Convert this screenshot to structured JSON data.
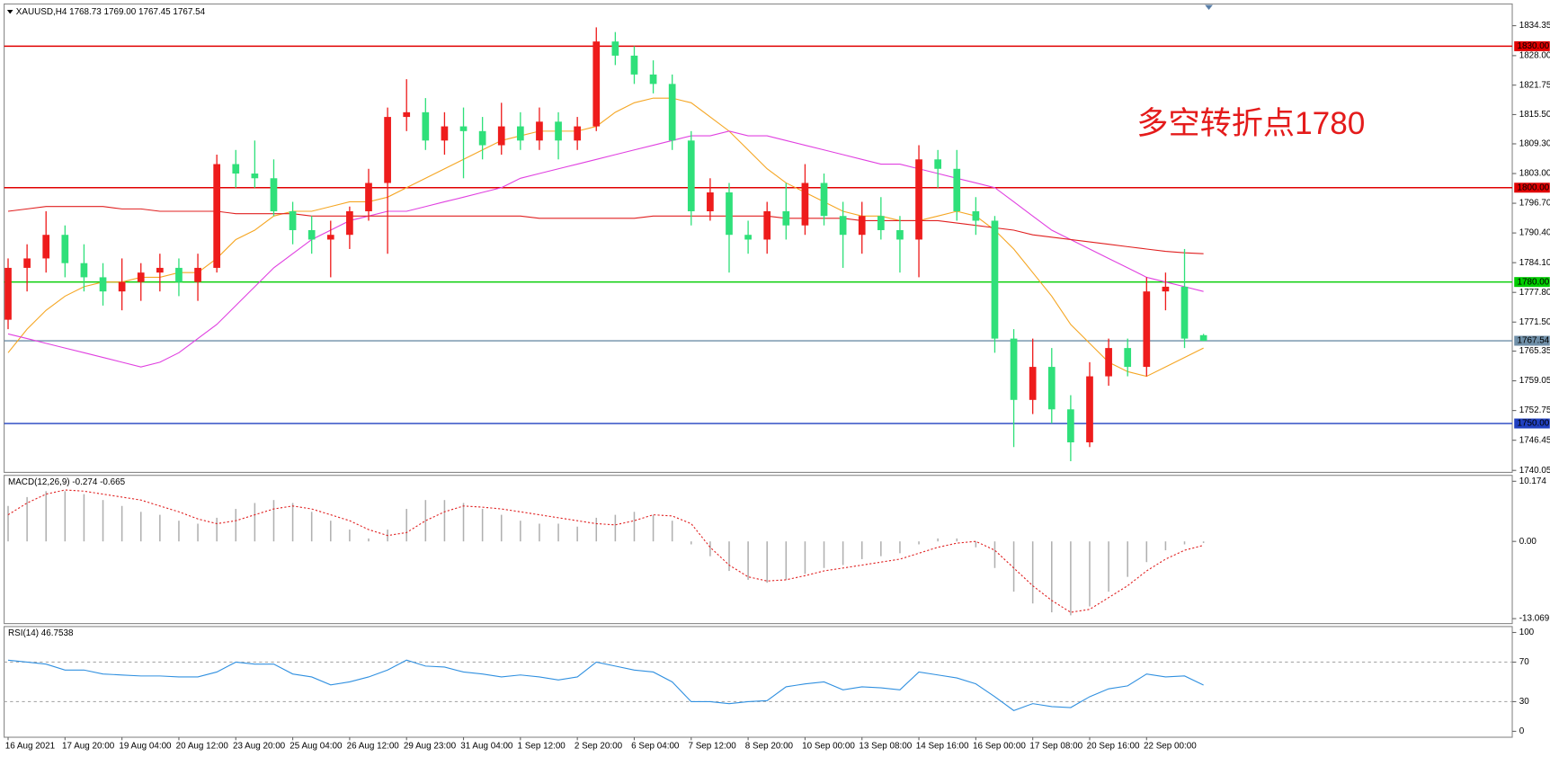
{
  "chart_data": [
    {
      "type": "candlestick",
      "title": "XAUUSD,H4",
      "ohlc_labels": [
        "1768.73",
        "1769.00",
        "1767.45",
        "1767.54"
      ],
      "categories": [
        "16 Aug 2021",
        null,
        null,
        "17 Aug 20:00",
        null,
        null,
        "19 Aug 04:00",
        null,
        null,
        "20 Aug 12:00",
        null,
        null,
        "23 Aug 20:00",
        null,
        null,
        "25 Aug 04:00",
        null,
        null,
        "26 Aug 12:00",
        null,
        null,
        "29 Aug 23:00",
        null,
        null,
        "31 Aug 04:00",
        null,
        null,
        "1 Sep 12:00",
        null,
        null,
        "2 Sep 20:00",
        null,
        null,
        "6 Sep 04:00",
        null,
        null,
        "7 Sep 12:00",
        null,
        null,
        "8 Sep 20:00",
        null,
        null,
        "10 Sep 00:00",
        null,
        null,
        "13 Sep 08:00",
        null,
        null,
        "14 Sep 16:00",
        null,
        null,
        "16 Sep 00:00",
        null,
        null,
        "17 Sep 08:00",
        null,
        null,
        "20 Sep 16:00",
        null,
        null,
        "22 Sep 00:00",
        null,
        null,
        null
      ],
      "open": [
        1772,
        1783,
        1785,
        1790,
        1784,
        1781,
        1778,
        1780,
        1782,
        1783,
        1780,
        1783,
        1805,
        1803,
        1802,
        1795,
        1791,
        1789,
        1790,
        1795,
        1801,
        1815,
        1816,
        1810,
        1813,
        1812,
        1809,
        1813,
        1810,
        1814,
        1810,
        1813,
        1831,
        1828,
        1824,
        1822,
        1810,
        1795,
        1799,
        1790,
        1789,
        1795,
        1792,
        1801,
        1794,
        1790,
        1794,
        1791,
        1789,
        1806,
        1804,
        1795,
        1793,
        1768,
        1755,
        1762,
        1753,
        1746,
        1760,
        1766,
        1762,
        1778,
        1779,
        1768.73
      ],
      "high": [
        1785,
        1788,
        1795,
        1792,
        1788,
        1784,
        1785,
        1784,
        1786,
        1785,
        1786,
        1807,
        1808,
        1810,
        1806,
        1797,
        1794,
        1793,
        1796,
        1804,
        1817,
        1823,
        1819,
        1816,
        1817,
        1815,
        1818,
        1816,
        1817,
        1816,
        1815,
        1834,
        1833,
        1830,
        1827,
        1824,
        1812,
        1802,
        1801,
        1793,
        1797,
        1801,
        1805,
        1803,
        1797,
        1797,
        1798,
        1794,
        1809,
        1808,
        1808,
        1798,
        1794,
        1770,
        1768,
        1766,
        1756,
        1763,
        1768,
        1768,
        1781,
        1782,
        1787,
        1769
      ],
      "low": [
        1770,
        1778,
        1782,
        1781,
        1778,
        1775,
        1774,
        1776,
        1778,
        1777,
        1776,
        1782,
        1800,
        1800,
        1794,
        1788,
        1786,
        1781,
        1787,
        1793,
        1786,
        1812,
        1808,
        1807,
        1802,
        1806,
        1807,
        1808,
        1808,
        1806,
        1808,
        1812,
        1826,
        1822,
        1820,
        1808,
        1792,
        1793,
        1782,
        1786,
        1786,
        1789,
        1790,
        1792,
        1783,
        1786,
        1789,
        1782,
        1781,
        1800,
        1793,
        1790,
        1765,
        1745,
        1752,
        1750,
        1742,
        1745,
        1758,
        1760,
        1760,
        1774,
        1766,
        1767.45
      ],
      "close": [
        1783,
        1785,
        1790,
        1784,
        1781,
        1778,
        1780,
        1782,
        1783,
        1780,
        1783,
        1805,
        1803,
        1802,
        1795,
        1791,
        1789,
        1790,
        1795,
        1801,
        1815,
        1816,
        1810,
        1813,
        1812,
        1809,
        1813,
        1810,
        1814,
        1810,
        1813,
        1831,
        1828,
        1824,
        1822,
        1810,
        1795,
        1799,
        1790,
        1789,
        1795,
        1792,
        1801,
        1794,
        1790,
        1794,
        1791,
        1789,
        1806,
        1804,
        1795,
        1793,
        1768,
        1755,
        1762,
        1753,
        1746,
        1760,
        1766,
        1762,
        1778,
        1779,
        1768,
        1767.54
      ],
      "up_color": "#ee1c1c",
      "down_color": "#2fe07a",
      "series": [
        {
          "color": "#f5a623",
          "values": [
            1765,
            1770,
            1774,
            1777,
            1779,
            1780,
            1780,
            1781,
            1781,
            1782,
            1782,
            1785,
            1789,
            1791,
            1794,
            1795,
            1795,
            1796,
            1797,
            1797,
            1798,
            1800,
            1802,
            1804,
            1806,
            1808,
            1810,
            1811,
            1812,
            1812,
            1812,
            1813,
            1816,
            1818,
            1819,
            1819,
            1818,
            1815,
            1812,
            1808,
            1804,
            1801,
            1799,
            1797,
            1795,
            1794,
            1794,
            1793,
            1793,
            1794,
            1795,
            1794,
            1791,
            1787,
            1782,
            1777,
            1771,
            1767,
            1763,
            1761,
            1760,
            1762,
            1764,
            1766
          ]
        },
        {
          "color": "#e040e0",
          "values": [
            1769,
            1768,
            1767,
            1766,
            1765,
            1764,
            1763,
            1762,
            1763,
            1765,
            1768,
            1771,
            1775,
            1779,
            1783,
            1786,
            1789,
            1791,
            1793,
            1794,
            1795,
            1795,
            1796,
            1797,
            1798,
            1799,
            1800,
            1802,
            1803,
            1804,
            1805,
            1806,
            1807,
            1808,
            1809,
            1810,
            1811,
            1811,
            1812,
            1811,
            1811,
            1810,
            1809,
            1808,
            1807,
            1806,
            1805,
            1805,
            1804,
            1803,
            1802,
            1801,
            1800,
            1797,
            1794,
            1791,
            1789,
            1787,
            1785,
            1783,
            1781,
            1780,
            1779,
            1778
          ]
        },
        {
          "color": "#e02020",
          "values": [
            1795,
            1795.5,
            1796,
            1796,
            1796,
            1796,
            1795.5,
            1795.5,
            1795,
            1795,
            1795,
            1795,
            1794.5,
            1794.5,
            1794.5,
            1794.5,
            1794,
            1794,
            1794,
            1794,
            1794,
            1794,
            1794,
            1794,
            1794,
            1794,
            1794,
            1794,
            1793.5,
            1793.5,
            1793.5,
            1793.5,
            1793.5,
            1793.5,
            1794,
            1794,
            1794,
            1794,
            1794,
            1794,
            1794,
            1793.5,
            1793.5,
            1793.5,
            1793.5,
            1793,
            1793,
            1793,
            1793,
            1793,
            1792.5,
            1792,
            1791.5,
            1791,
            1790,
            1789.5,
            1789,
            1788.5,
            1788,
            1787.5,
            1787,
            1786.5,
            1786.2,
            1786
          ]
        }
      ],
      "levels": [
        {
          "value": 1830,
          "label": "1830.00",
          "color": "#e00000"
        },
        {
          "value": 1800,
          "label": "1800.00",
          "color": "#e00000"
        },
        {
          "value": 1780,
          "label": "1780.00",
          "color": "#00cc00"
        },
        {
          "value": 1767.54,
          "label": "1767.54",
          "color": "#6f8fa8"
        },
        {
          "value": 1750,
          "label": "1750.00",
          "color": "#2040c0"
        }
      ],
      "annotation": "多空转折点1780",
      "ylim": [
        1740.05,
        1834.35
      ],
      "yticks": [
        {
          "value": 1834.35,
          "label": "1834.35"
        },
        {
          "value": 1828,
          "label": "1828.00"
        },
        {
          "value": 1821.75,
          "label": "1821.75"
        },
        {
          "value": 1815.5,
          "label": "1815.50"
        },
        {
          "value": 1809.3,
          "label": "1809.30"
        },
        {
          "value": 1803,
          "label": "1803.00"
        },
        {
          "value": 1796.7,
          "label": "1796.70"
        },
        {
          "value": 1790.4,
          "label": "1790.40"
        },
        {
          "value": 1784.1,
          "label": "1784.10"
        },
        {
          "value": 1777.8,
          "label": "1777.80"
        },
        {
          "value": 1771.5,
          "label": "1771.50"
        },
        {
          "value": 1765.35,
          "label": "1765.35"
        },
        {
          "value": 1759.05,
          "label": "1759.05"
        },
        {
          "value": 1752.75,
          "label": "1752.75"
        },
        {
          "value": 1746.45,
          "label": "1746.45"
        },
        {
          "value": 1740.05,
          "label": "1740.05"
        }
      ]
    },
    {
      "type": "macd",
      "title": "MACD(12,26,9) -0.274 -0.665",
      "series": [
        {
          "color": "#b0b0b0",
          "values": [
            6,
            7.5,
            8.5,
            8.5,
            8,
            7,
            6,
            5,
            4.5,
            3.5,
            3,
            4,
            5.5,
            6.5,
            7,
            6.5,
            5,
            3.5,
            2,
            0.5,
            2,
            5.5,
            7,
            7,
            6.5,
            5.5,
            4.5,
            3.5,
            3,
            3,
            2.5,
            4,
            4.5,
            5,
            4.5,
            3.5,
            -0.5,
            -2.5,
            -5,
            -6.5,
            -7,
            -6.5,
            -5.5,
            -4.5,
            -4,
            -3,
            -2.5,
            -2,
            -0.5,
            0.5,
            0.5,
            -1,
            -4.5,
            -8.5,
            -10.5,
            -12,
            -12.5,
            -11,
            -8.5,
            -6,
            -3.5,
            -1.5,
            -0.5,
            -0.274
          ]
        },
        {
          "color": "#e02020",
          "values": [
            4.5,
            6.5,
            8,
            8.7,
            8.5,
            8,
            7.5,
            7,
            6,
            5,
            3.8,
            3,
            3.5,
            4.5,
            5.5,
            6,
            5.5,
            4.5,
            3.5,
            2,
            1,
            1.5,
            3.5,
            5,
            6,
            5.8,
            5.5,
            5,
            4.5,
            4,
            3.5,
            3,
            2.8,
            3.5,
            4.5,
            4.3,
            3,
            -1,
            -4,
            -6,
            -6.7,
            -6.5,
            -5.8,
            -5,
            -4.5,
            -4,
            -3.5,
            -3,
            -2,
            -1,
            -0.3,
            0,
            -1.5,
            -4.5,
            -7.5,
            -10,
            -12,
            -11.5,
            -9.5,
            -7.5,
            -5,
            -3,
            -1.5,
            -0.665
          ]
        }
      ],
      "ylim": [
        -13.069,
        10.174
      ],
      "yticks": [
        10.174,
        {
          "value": 0,
          "label": "0.00"
        },
        -13.069
      ]
    },
    {
      "type": "line",
      "title": "RSI(14) 46.7538",
      "color": "#3090e0",
      "values": [
        72,
        70,
        68,
        62,
        62,
        58,
        57,
        56,
        56,
        55,
        55,
        60,
        70,
        68,
        68,
        58,
        55,
        47,
        50,
        55,
        62,
        72,
        66,
        65,
        60,
        58,
        55,
        57,
        55,
        52,
        55,
        70,
        66,
        62,
        60,
        50,
        30,
        30,
        28,
        30,
        31,
        45,
        48,
        50,
        42,
        45,
        44,
        42,
        60,
        57,
        54,
        48,
        35,
        21,
        28,
        25,
        24,
        35,
        43,
        46,
        58,
        55,
        56,
        46.7538
      ],
      "ylim": [
        0,
        100
      ],
      "yticks": [
        0,
        30,
        70,
        100
      ]
    }
  ]
}
